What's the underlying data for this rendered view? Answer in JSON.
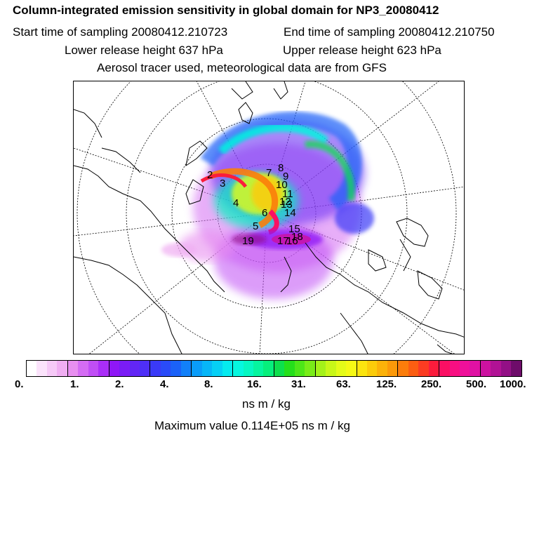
{
  "header": {
    "title": "Column-integrated emission sensitivity in global domain for NP3_20080412",
    "start_time": "Start time of sampling 20080412.210723",
    "end_time": "End time of sampling 20080412.210750",
    "lower_height": "Lower release height  637 hPa",
    "upper_height": "Upper release height  623 hPa",
    "tracer_note": "Aerosol tracer used, meteorological data are from GFS"
  },
  "colorbar": {
    "colors": [
      "#ffffff",
      "#fbe3fb",
      "#f6c9f7",
      "#f0aef2",
      "#e88ff0",
      "#d46cf3",
      "#c04ef5",
      "#aa2ef7",
      "#8f17f6",
      "#7a1cf5",
      "#6226f5",
      "#4e2ff7",
      "#3a3af7",
      "#2a4bf8",
      "#1b62f8",
      "#1280f8",
      "#0a9cf8",
      "#07b6f7",
      "#06d0f5",
      "#05ebef",
      "#06f7df",
      "#06f7c2",
      "#06f59f",
      "#07ef7c",
      "#0ddf4d",
      "#25df1b",
      "#4de618",
      "#79ec18",
      "#a4f219",
      "#c8f718",
      "#e4fb18",
      "#f5f915",
      "#fbe50f",
      "#fbcc0a",
      "#fbb209",
      "#fb9909",
      "#fb7d0b",
      "#fb5e12",
      "#fb3c22",
      "#fb1c3c",
      "#fb0f63",
      "#f80f82",
      "#ef109a",
      "#e011a4",
      "#cc12a0",
      "#b11295",
      "#931086",
      "#6e0c6a"
    ],
    "tick_labels": [
      "0.",
      "1.",
      "2.",
      "4.",
      "8.",
      "16.",
      "31.",
      "63.",
      "125.",
      "250.",
      "500.",
      "1000."
    ]
  },
  "unit_label": "ns m / kg",
  "max_value_text": "Maximum value  0.114E+05 ns m / kg",
  "map": {
    "markers": [
      "2",
      "3",
      "4",
      "5",
      "6",
      "7",
      "8",
      "9",
      "10",
      "11",
      "12",
      "13",
      "14",
      "15",
      "16",
      "17",
      "18",
      "19"
    ]
  }
}
